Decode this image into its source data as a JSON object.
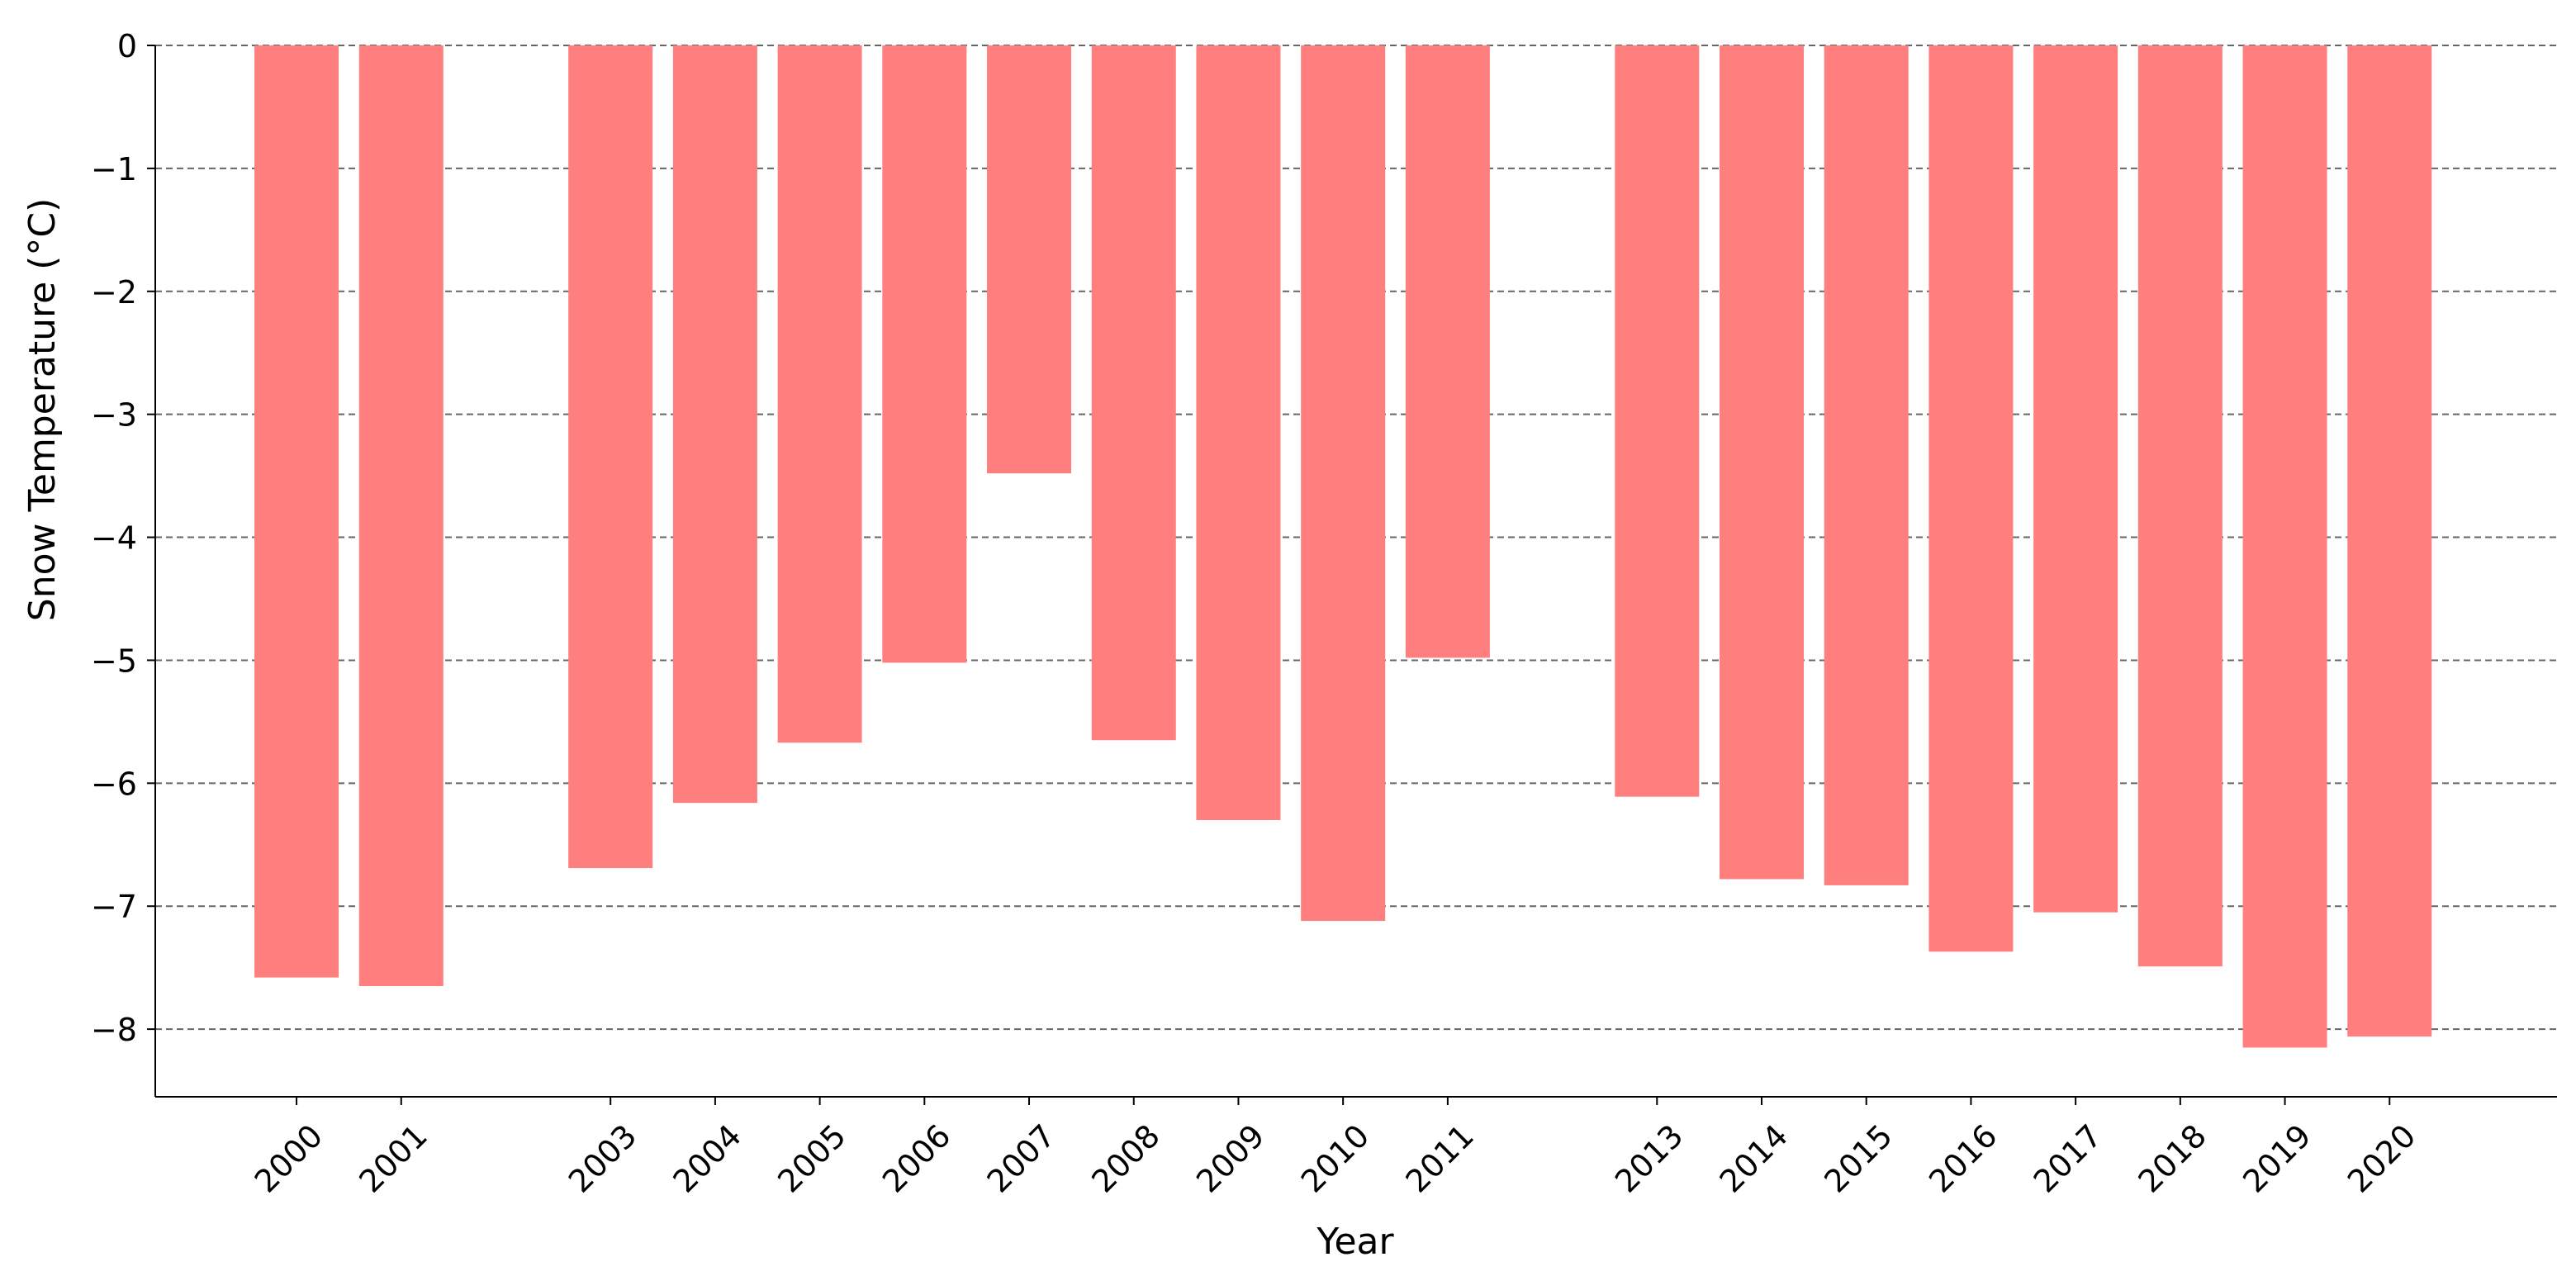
{
  "chart_data": {
    "type": "bar",
    "title": "",
    "xlabel": "Year",
    "ylabel": "Snow Temperature (°C)",
    "x": [
      2000,
      2001,
      2003,
      2004,
      2005,
      2006,
      2007,
      2008,
      2009,
      2010,
      2011,
      2013,
      2014,
      2015,
      2016,
      2017,
      2018,
      2019,
      2020
    ],
    "categories": [
      "2000",
      "2001",
      "2003",
      "2004",
      "2005",
      "2006",
      "2007",
      "2008",
      "2009",
      "2010",
      "2011",
      "2013",
      "2014",
      "2015",
      "2016",
      "2017",
      "2018",
      "2019",
      "2020"
    ],
    "values": [
      -7.58,
      -7.65,
      -6.69,
      -6.16,
      -5.67,
      -5.02,
      -3.48,
      -5.65,
      -6.3,
      -7.12,
      -4.98,
      -6.11,
      -6.78,
      -6.83,
      -7.37,
      -7.05,
      -7.49,
      -8.15,
      -8.06
    ],
    "ylim": [
      -8.55,
      0
    ],
    "yticks": [
      0,
      -1,
      -2,
      -3,
      -4,
      -5,
      -6,
      -7,
      -8
    ],
    "ytick_labels": [
      "0",
      "−1",
      "−2",
      "−3",
      "−4",
      "−5",
      "−6",
      "−7",
      "−8"
    ],
    "xlim": [
      1998.65,
      2021.6
    ],
    "grid": "horizontal dashed",
    "bar_color": "#ff7f7f",
    "grid_color": "#666666"
  }
}
